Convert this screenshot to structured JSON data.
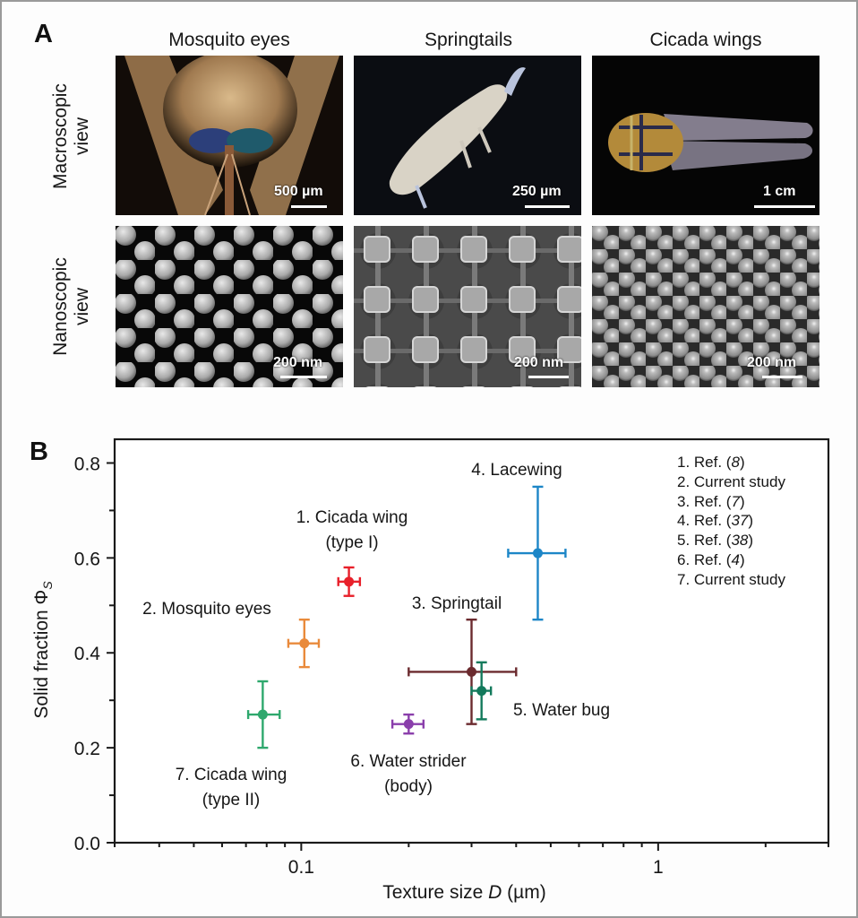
{
  "panel_a": {
    "label": "A",
    "columns": [
      "Mosquito eyes",
      "Springtails",
      "Cicada wings"
    ],
    "rows": [
      {
        "label_line1": "Macroscopic",
        "label_line2": "view"
      },
      {
        "label_line1": "Nanoscopic",
        "label_line2": "view"
      }
    ],
    "scale_bars": {
      "macro": [
        "500 µm",
        "250 µm",
        "1 cm"
      ],
      "nano": [
        "200 nm",
        "200 nm",
        "200 nm"
      ]
    },
    "images": [
      {
        "row": "macro",
        "col": "Mosquito eyes",
        "desc": "Close-up of mosquito head with iridescent blue-green compound eyes"
      },
      {
        "row": "macro",
        "col": "Springtails",
        "desc": "Pale white springtail on black background"
      },
      {
        "row": "macro",
        "col": "Cicada wings",
        "desc": "Cicada with transparent veined wings, top view"
      },
      {
        "row": "nano",
        "col": "Mosquito eyes",
        "desc": "SEM of hexagonally packed rounded nanobumps"
      },
      {
        "row": "nano",
        "col": "Springtails",
        "desc": "SEM of square granules connected by ridges"
      },
      {
        "row": "nano",
        "col": "Cicada wings",
        "desc": "SEM of densely packed conical nanopillars"
      }
    ]
  },
  "panel_b": {
    "label": "B",
    "legend": [
      {
        "prefix": "1. Ref. (",
        "ref": "8",
        "suffix": ")"
      },
      {
        "prefix": "2. Current study",
        "ref": "",
        "suffix": ""
      },
      {
        "prefix": "3. Ref. (",
        "ref": "7",
        "suffix": ")"
      },
      {
        "prefix": "4. Ref. (",
        "ref": "37",
        "suffix": ")"
      },
      {
        "prefix": "5. Ref. (",
        "ref": "38",
        "suffix": ")"
      },
      {
        "prefix": "6. Ref. (",
        "ref": "4",
        "suffix": ")"
      },
      {
        "prefix": "7. Current study",
        "ref": "",
        "suffix": ""
      }
    ]
  },
  "chart_data": {
    "type": "scatter",
    "title": "",
    "xlabel": "Texture size D (µm)",
    "ylabel": "Solid fraction Φs",
    "xscale": "log",
    "xlim": [
      0.03,
      3.0
    ],
    "ylim": [
      0.0,
      0.85
    ],
    "xticks": [
      0.1,
      1
    ],
    "xtick_labels": [
      "0.1",
      "1"
    ],
    "yticks": [
      0.0,
      0.2,
      0.4,
      0.6,
      0.8
    ],
    "ytick_labels": [
      "0.0",
      "0.2",
      "0.4",
      "0.6",
      "0.8"
    ],
    "y_minor_ticks": [
      0.1,
      0.3,
      0.5,
      0.7
    ],
    "grid": false,
    "legend_position": "upper right (text list)",
    "series": [
      {
        "id": 1,
        "name": "Cicada wing (type I)",
        "label_lines": [
          "1. Cicada wing",
          "(type I)"
        ],
        "source": "Ref. (8)",
        "color": "#e8202a",
        "x": 0.136,
        "y": 0.55,
        "xerr": [
          0.127,
          0.146
        ],
        "yerr": [
          0.52,
          0.58
        ]
      },
      {
        "id": 2,
        "name": "Mosquito eyes",
        "label_lines": [
          "2. Mosquito eyes"
        ],
        "source": "Current study",
        "color": "#e98a3b",
        "x": 0.102,
        "y": 0.42,
        "xerr": [
          0.092,
          0.112
        ],
        "yerr": [
          0.37,
          0.47
        ]
      },
      {
        "id": 3,
        "name": "Springtail",
        "label_lines": [
          "3. Springtail"
        ],
        "source": "Ref. (7)",
        "color": "#6b2a2e",
        "x": 0.3,
        "y": 0.36,
        "xerr": [
          0.2,
          0.4
        ],
        "yerr": [
          0.25,
          0.47
        ]
      },
      {
        "id": 4,
        "name": "Lacewing",
        "label_lines": [
          "4. Lacewing"
        ],
        "source": "Ref. (37)",
        "color": "#1d86c7",
        "x": 0.46,
        "y": 0.61,
        "xerr": [
          0.38,
          0.55
        ],
        "yerr": [
          0.47,
          0.75
        ]
      },
      {
        "id": 5,
        "name": "Water bug",
        "label_lines": [
          "5. Water bug"
        ],
        "source": "Ref. (38)",
        "color": "#137a5c",
        "x": 0.32,
        "y": 0.32,
        "xerr": [
          0.3,
          0.34
        ],
        "yerr": [
          0.26,
          0.38
        ]
      },
      {
        "id": 6,
        "name": "Water strider (body)",
        "label_lines": [
          "6. Water strider",
          "(body)"
        ],
        "source": "Ref. (4)",
        "color": "#8a3eab",
        "x": 0.2,
        "y": 0.25,
        "xerr": [
          0.18,
          0.22
        ],
        "yerr": [
          0.23,
          0.27
        ]
      },
      {
        "id": 7,
        "name": "Cicada wing (type II)",
        "label_lines": [
          "7. Cicada wing",
          "(type II)"
        ],
        "source": "Current study",
        "color": "#2ea86d",
        "x": 0.078,
        "y": 0.27,
        "xerr": [
          0.071,
          0.087
        ],
        "yerr": [
          0.2,
          0.34
        ]
      }
    ]
  }
}
